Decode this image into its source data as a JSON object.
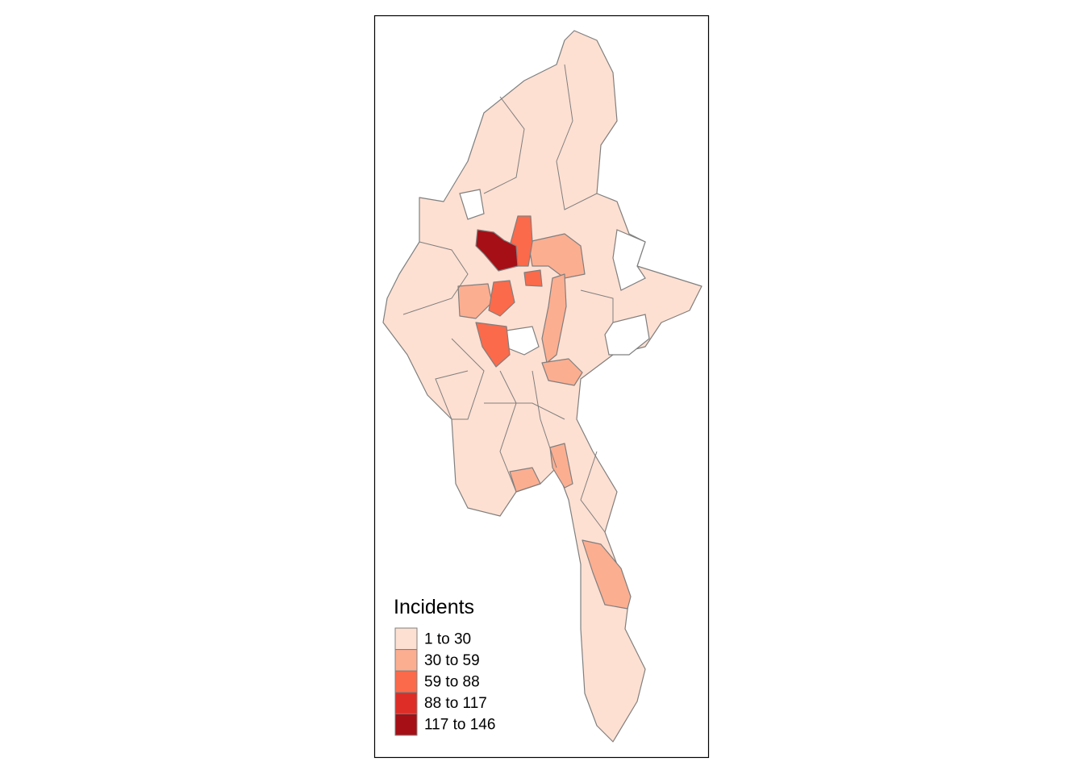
{
  "legend": {
    "title": "Incidents",
    "items": [
      {
        "label": "1 to 30",
        "color": "#fee0d2"
      },
      {
        "label": "30 to 59",
        "color": "#fcae91"
      },
      {
        "label": "59 to 88",
        "color": "#fb6a4a"
      },
      {
        "label": "88 to 117",
        "color": "#de2d26"
      },
      {
        "label": "117 to 146",
        "color": "#a50f15"
      }
    ]
  }
}
